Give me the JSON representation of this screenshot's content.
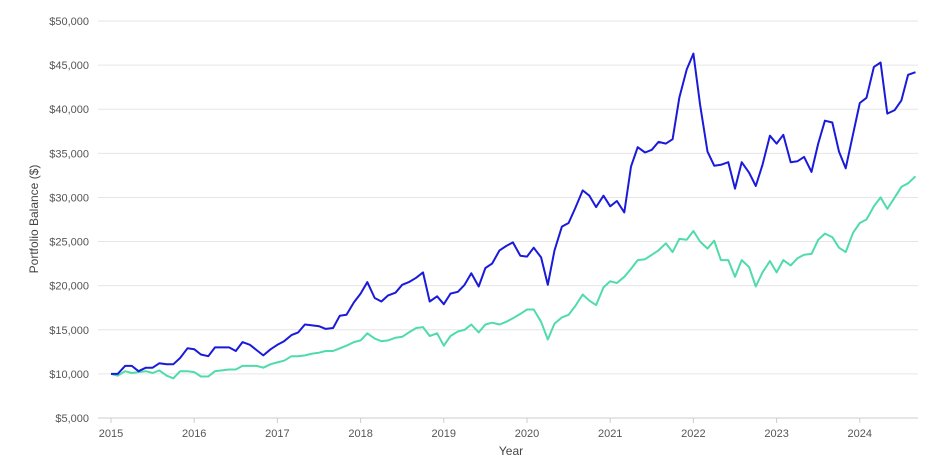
{
  "chart_data": {
    "type": "line",
    "xlabel": "Year",
    "ylabel": "Portfolio Balance ($)",
    "ylim": [
      5000,
      50000
    ],
    "xlim": [
      2015,
      2024.75
    ],
    "y_ticks": [
      5000,
      10000,
      15000,
      20000,
      25000,
      30000,
      35000,
      40000,
      45000,
      50000
    ],
    "y_tick_labels": [
      "$5,000",
      "$10,000",
      "$15,000",
      "$20,000",
      "$25,000",
      "$30,000",
      "$35,000",
      "$40,000",
      "$45,000",
      "$50,000"
    ],
    "x_ticks": [
      2015,
      2016,
      2017,
      2018,
      2019,
      2020,
      2021,
      2022,
      2023,
      2024
    ],
    "x_tick_labels": [
      "2015",
      "2016",
      "2017",
      "2018",
      "2019",
      "2020",
      "2021",
      "2022",
      "2023",
      "2024"
    ],
    "grid": true,
    "legend": "none",
    "colors": {
      "series1": "#1a1adb",
      "series2": "#4fdcaa",
      "grid": "#e6e6e6",
      "axis": "#cccccc"
    },
    "series": [
      {
        "points": [
          [
            2015.0,
            10000
          ],
          [
            2015.08,
            10000
          ],
          [
            2015.17,
            10900
          ],
          [
            2015.25,
            10900
          ],
          [
            2015.33,
            10300
          ],
          [
            2015.42,
            10700
          ],
          [
            2015.5,
            10700
          ],
          [
            2015.58,
            11200
          ],
          [
            2015.67,
            11100
          ],
          [
            2015.75,
            11100
          ],
          [
            2015.83,
            11800
          ],
          [
            2015.92,
            12900
          ],
          [
            2016.0,
            12800
          ],
          [
            2016.08,
            12200
          ],
          [
            2016.17,
            12000
          ],
          [
            2016.25,
            13000
          ],
          [
            2016.33,
            13000
          ],
          [
            2016.42,
            13000
          ],
          [
            2016.5,
            12600
          ],
          [
            2016.58,
            13600
          ],
          [
            2016.67,
            13300
          ],
          [
            2016.75,
            12700
          ],
          [
            2016.83,
            12100
          ],
          [
            2016.92,
            12800
          ],
          [
            2017.0,
            13300
          ],
          [
            2017.08,
            13700
          ],
          [
            2017.17,
            14400
          ],
          [
            2017.25,
            14700
          ],
          [
            2017.33,
            15600
          ],
          [
            2017.42,
            15500
          ],
          [
            2017.5,
            15400
          ],
          [
            2017.58,
            15100
          ],
          [
            2017.67,
            15200
          ],
          [
            2017.75,
            16600
          ],
          [
            2017.83,
            16700
          ],
          [
            2017.92,
            18100
          ],
          [
            2018.0,
            19100
          ],
          [
            2018.08,
            20400
          ],
          [
            2018.17,
            18600
          ],
          [
            2018.25,
            18200
          ],
          [
            2018.33,
            18900
          ],
          [
            2018.42,
            19200
          ],
          [
            2018.5,
            20100
          ],
          [
            2018.58,
            20400
          ],
          [
            2018.67,
            20900
          ],
          [
            2018.75,
            21500
          ],
          [
            2018.83,
            18200
          ],
          [
            2018.92,
            18800
          ],
          [
            2019.0,
            17900
          ],
          [
            2019.08,
            19100
          ],
          [
            2019.17,
            19300
          ],
          [
            2019.25,
            20100
          ],
          [
            2019.33,
            21400
          ],
          [
            2019.42,
            19900
          ],
          [
            2019.5,
            22000
          ],
          [
            2019.58,
            22500
          ],
          [
            2019.67,
            24000
          ],
          [
            2019.75,
            24500
          ],
          [
            2019.83,
            24900
          ],
          [
            2019.92,
            23400
          ],
          [
            2020.0,
            23300
          ],
          [
            2020.08,
            24300
          ],
          [
            2020.17,
            23200
          ],
          [
            2020.25,
            20100
          ],
          [
            2020.33,
            24000
          ],
          [
            2020.42,
            26700
          ],
          [
            2020.5,
            27100
          ],
          [
            2020.58,
            28800
          ],
          [
            2020.67,
            30800
          ],
          [
            2020.75,
            30200
          ],
          [
            2020.83,
            28900
          ],
          [
            2020.92,
            30200
          ],
          [
            2021.0,
            29000
          ],
          [
            2021.08,
            29600
          ],
          [
            2021.17,
            28300
          ],
          [
            2021.25,
            33500
          ],
          [
            2021.33,
            35700
          ],
          [
            2021.42,
            35100
          ],
          [
            2021.5,
            35400
          ],
          [
            2021.58,
            36300
          ],
          [
            2021.67,
            36100
          ],
          [
            2021.75,
            36600
          ],
          [
            2021.83,
            41300
          ],
          [
            2021.92,
            44500
          ],
          [
            2022.0,
            46300
          ],
          [
            2022.08,
            40500
          ],
          [
            2022.17,
            35200
          ],
          [
            2022.25,
            33600
          ],
          [
            2022.33,
            33700
          ],
          [
            2022.42,
            34000
          ],
          [
            2022.5,
            31000
          ],
          [
            2022.58,
            34000
          ],
          [
            2022.67,
            32800
          ],
          [
            2022.75,
            31300
          ],
          [
            2022.83,
            33700
          ],
          [
            2022.92,
            37000
          ],
          [
            2023.0,
            36100
          ],
          [
            2023.08,
            37100
          ],
          [
            2023.17,
            34000
          ],
          [
            2023.25,
            34100
          ],
          [
            2023.33,
            34600
          ],
          [
            2023.42,
            32900
          ],
          [
            2023.5,
            36100
          ],
          [
            2023.58,
            38700
          ],
          [
            2023.67,
            38500
          ],
          [
            2023.75,
            35200
          ],
          [
            2023.83,
            33300
          ],
          [
            2023.92,
            37200
          ],
          [
            2024.0,
            40700
          ],
          [
            2024.08,
            41300
          ],
          [
            2024.17,
            44800
          ],
          [
            2024.25,
            45300
          ],
          [
            2024.33,
            39500
          ],
          [
            2024.42,
            39900
          ],
          [
            2024.5,
            41000
          ],
          [
            2024.58,
            43900
          ],
          [
            2024.67,
            44200
          ]
        ]
      },
      {
        "points": [
          [
            2015.0,
            10000
          ],
          [
            2015.08,
            9800
          ],
          [
            2015.17,
            10300
          ],
          [
            2015.25,
            10100
          ],
          [
            2015.33,
            10200
          ],
          [
            2015.42,
            10300
          ],
          [
            2015.5,
            10100
          ],
          [
            2015.58,
            10400
          ],
          [
            2015.67,
            9800
          ],
          [
            2015.75,
            9500
          ],
          [
            2015.83,
            10300
          ],
          [
            2015.92,
            10300
          ],
          [
            2016.0,
            10200
          ],
          [
            2016.08,
            9700
          ],
          [
            2016.17,
            9700
          ],
          [
            2016.25,
            10300
          ],
          [
            2016.33,
            10400
          ],
          [
            2016.42,
            10500
          ],
          [
            2016.5,
            10500
          ],
          [
            2016.58,
            10900
          ],
          [
            2016.67,
            10900
          ],
          [
            2016.75,
            10900
          ],
          [
            2016.83,
            10700
          ],
          [
            2016.92,
            11100
          ],
          [
            2017.0,
            11300
          ],
          [
            2017.08,
            11500
          ],
          [
            2017.17,
            12000
          ],
          [
            2017.25,
            12000
          ],
          [
            2017.33,
            12100
          ],
          [
            2017.42,
            12300
          ],
          [
            2017.5,
            12400
          ],
          [
            2017.58,
            12600
          ],
          [
            2017.67,
            12600
          ],
          [
            2017.75,
            12900
          ],
          [
            2017.83,
            13200
          ],
          [
            2017.92,
            13600
          ],
          [
            2018.0,
            13800
          ],
          [
            2018.08,
            14600
          ],
          [
            2018.17,
            14000
          ],
          [
            2018.25,
            13700
          ],
          [
            2018.33,
            13800
          ],
          [
            2018.42,
            14100
          ],
          [
            2018.5,
            14200
          ],
          [
            2018.58,
            14700
          ],
          [
            2018.67,
            15200
          ],
          [
            2018.75,
            15300
          ],
          [
            2018.83,
            14300
          ],
          [
            2018.92,
            14600
          ],
          [
            2019.0,
            13200
          ],
          [
            2019.08,
            14300
          ],
          [
            2019.17,
            14800
          ],
          [
            2019.25,
            15000
          ],
          [
            2019.33,
            15600
          ],
          [
            2019.42,
            14700
          ],
          [
            2019.5,
            15600
          ],
          [
            2019.58,
            15800
          ],
          [
            2019.67,
            15600
          ],
          [
            2019.75,
            15900
          ],
          [
            2019.83,
            16300
          ],
          [
            2019.92,
            16800
          ],
          [
            2020.0,
            17300
          ],
          [
            2020.08,
            17300
          ],
          [
            2020.17,
            15900
          ],
          [
            2020.25,
            13900
          ],
          [
            2020.33,
            15700
          ],
          [
            2020.42,
            16400
          ],
          [
            2020.5,
            16700
          ],
          [
            2020.58,
            17700
          ],
          [
            2020.67,
            19000
          ],
          [
            2020.75,
            18300
          ],
          [
            2020.83,
            17800
          ],
          [
            2020.92,
            19800
          ],
          [
            2021.0,
            20500
          ],
          [
            2021.08,
            20300
          ],
          [
            2021.17,
            21000
          ],
          [
            2021.25,
            21900
          ],
          [
            2021.33,
            22900
          ],
          [
            2021.42,
            23000
          ],
          [
            2021.5,
            23500
          ],
          [
            2021.58,
            24000
          ],
          [
            2021.67,
            24800
          ],
          [
            2021.75,
            23800
          ],
          [
            2021.83,
            25300
          ],
          [
            2021.92,
            25200
          ],
          [
            2022.0,
            26200
          ],
          [
            2022.08,
            25000
          ],
          [
            2022.17,
            24200
          ],
          [
            2022.25,
            25100
          ],
          [
            2022.33,
            22900
          ],
          [
            2022.42,
            22900
          ],
          [
            2022.5,
            21000
          ],
          [
            2022.58,
            22900
          ],
          [
            2022.67,
            22100
          ],
          [
            2022.75,
            19900
          ],
          [
            2022.83,
            21500
          ],
          [
            2022.92,
            22800
          ],
          [
            2023.0,
            21500
          ],
          [
            2023.08,
            22900
          ],
          [
            2023.17,
            22300
          ],
          [
            2023.25,
            23100
          ],
          [
            2023.33,
            23500
          ],
          [
            2023.42,
            23600
          ],
          [
            2023.5,
            25200
          ],
          [
            2023.58,
            25900
          ],
          [
            2023.67,
            25500
          ],
          [
            2023.75,
            24300
          ],
          [
            2023.83,
            23800
          ],
          [
            2023.92,
            26000
          ],
          [
            2024.0,
            27100
          ],
          [
            2024.08,
            27500
          ],
          [
            2024.17,
            29000
          ],
          [
            2024.25,
            30000
          ],
          [
            2024.33,
            28700
          ],
          [
            2024.42,
            30000
          ],
          [
            2024.5,
            31200
          ],
          [
            2024.58,
            31600
          ],
          [
            2024.67,
            32400
          ]
        ]
      }
    ]
  }
}
